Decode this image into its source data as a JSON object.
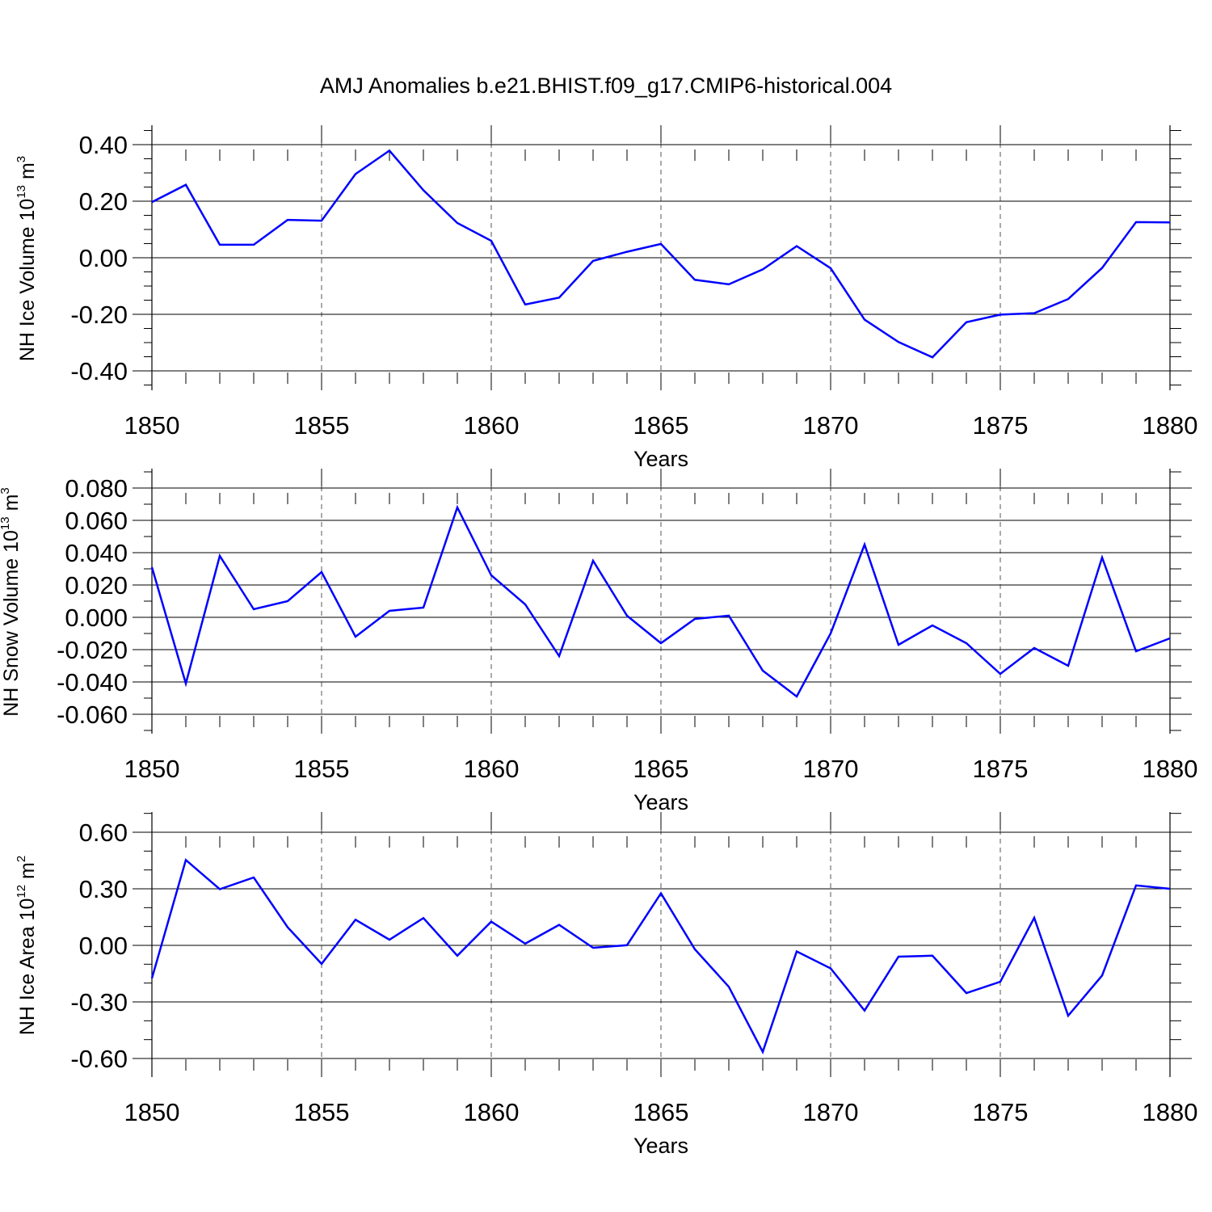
{
  "title": "AMJ Anomalies b.e21.BHIST.f09_g17.CMIP6-historical.004",
  "line_color": "#0000ff",
  "chart_data": [
    {
      "type": "line",
      "xlabel": "Years",
      "ylabel": {
        "main": "NH Ice Volume 10",
        "exp": "13",
        "unit": " m",
        "unit_exp": "3"
      },
      "xlim": [
        1850,
        1880
      ],
      "ylim": [
        -0.4,
        0.4
      ],
      "x_ticks": [
        "1850",
        "1855",
        "1860",
        "1865",
        "1870",
        "1875",
        "1880"
      ],
      "y_ticks": [
        {
          "value": 0.4,
          "label": "0.40"
        },
        {
          "value": 0.2,
          "label": "0.20"
        },
        {
          "value": 0.0,
          "label": "0.00"
        },
        {
          "value": -0.2,
          "label": "-0.20"
        },
        {
          "value": -0.4,
          "label": "-0.40"
        }
      ],
      "x": [
        1850,
        1851,
        1852,
        1853,
        1854,
        1855,
        1856,
        1857,
        1858,
        1859,
        1860,
        1861,
        1862,
        1863,
        1864,
        1865,
        1866,
        1867,
        1868,
        1869,
        1870,
        1871,
        1872,
        1873,
        1874,
        1875,
        1876,
        1877,
        1878,
        1879,
        1880
      ],
      "series": [
        {
          "name": "NH Ice Volume",
          "values": [
            0.197,
            0.258,
            0.046,
            0.046,
            0.134,
            0.131,
            0.296,
            0.379,
            0.239,
            0.123,
            0.06,
            -0.165,
            -0.141,
            -0.011,
            0.021,
            0.049,
            -0.078,
            -0.094,
            -0.041,
            0.041,
            -0.037,
            -0.219,
            -0.298,
            -0.352,
            -0.228,
            -0.201,
            -0.196,
            -0.146,
            -0.036,
            0.126,
            0.125
          ]
        }
      ]
    },
    {
      "type": "line",
      "xlabel": "Years",
      "ylabel": {
        "main": "NH Snow Volume 10",
        "exp": "13",
        "unit": " m",
        "unit_exp": "3"
      },
      "xlim": [
        1850,
        1880
      ],
      "ylim": [
        -0.06,
        0.08
      ],
      "x_ticks": [
        "1850",
        "1855",
        "1860",
        "1865",
        "1870",
        "1875",
        "1880"
      ],
      "y_ticks": [
        {
          "value": 0.08,
          "label": "0.080"
        },
        {
          "value": 0.06,
          "label": "0.060"
        },
        {
          "value": 0.04,
          "label": "0.040"
        },
        {
          "value": 0.02,
          "label": "0.020"
        },
        {
          "value": 0.0,
          "label": "0.000"
        },
        {
          "value": -0.02,
          "label": "-0.020"
        },
        {
          "value": -0.04,
          "label": "-0.040"
        },
        {
          "value": -0.06,
          "label": "-0.060"
        }
      ],
      "x": [
        1850,
        1851,
        1852,
        1853,
        1854,
        1855,
        1856,
        1857,
        1858,
        1859,
        1860,
        1861,
        1862,
        1863,
        1864,
        1865,
        1866,
        1867,
        1868,
        1869,
        1870,
        1871,
        1872,
        1873,
        1874,
        1875,
        1876,
        1877,
        1878,
        1879,
        1880
      ],
      "series": [
        {
          "name": "NH Snow Volume",
          "values": [
            0.031,
            -0.041,
            0.038,
            0.005,
            0.01,
            0.028,
            -0.012,
            0.004,
            0.006,
            0.068,
            0.026,
            0.008,
            -0.024,
            0.035,
            0.001,
            -0.016,
            -0.001,
            0.001,
            -0.033,
            -0.049,
            -0.01,
            0.045,
            -0.017,
            -0.005,
            -0.016,
            -0.035,
            -0.019,
            -0.03,
            0.037,
            -0.021,
            -0.013
          ]
        }
      ]
    },
    {
      "type": "line",
      "xlabel": "Years",
      "ylabel": {
        "main": "NH Ice Area 10",
        "exp": "12",
        "unit": " m",
        "unit_exp": "2"
      },
      "xlim": [
        1850,
        1880
      ],
      "ylim": [
        -0.6,
        0.6
      ],
      "x_ticks": [
        "1850",
        "1855",
        "1860",
        "1865",
        "1870",
        "1875",
        "1880"
      ],
      "y_ticks": [
        {
          "value": 0.6,
          "label": "0.60"
        },
        {
          "value": 0.3,
          "label": "0.30"
        },
        {
          "value": 0.0,
          "label": "0.00"
        },
        {
          "value": -0.3,
          "label": "-0.30"
        },
        {
          "value": -0.6,
          "label": "-0.60"
        }
      ],
      "x": [
        1850,
        1851,
        1852,
        1853,
        1854,
        1855,
        1856,
        1857,
        1858,
        1859,
        1860,
        1861,
        1862,
        1863,
        1864,
        1865,
        1866,
        1867,
        1868,
        1869,
        1870,
        1871,
        1872,
        1873,
        1874,
        1875,
        1876,
        1877,
        1878,
        1879,
        1880
      ],
      "series": [
        {
          "name": "NH Ice Area",
          "values": [
            -0.175,
            0.453,
            0.298,
            0.36,
            0.096,
            -0.098,
            0.136,
            0.03,
            0.145,
            -0.055,
            0.126,
            0.009,
            0.109,
            -0.013,
            0.001,
            0.276,
            -0.021,
            -0.22,
            -0.565,
            -0.032,
            -0.122,
            -0.346,
            -0.06,
            -0.055,
            -0.253,
            -0.193,
            0.146,
            -0.373,
            -0.16,
            0.318,
            0.3
          ]
        }
      ]
    }
  ]
}
